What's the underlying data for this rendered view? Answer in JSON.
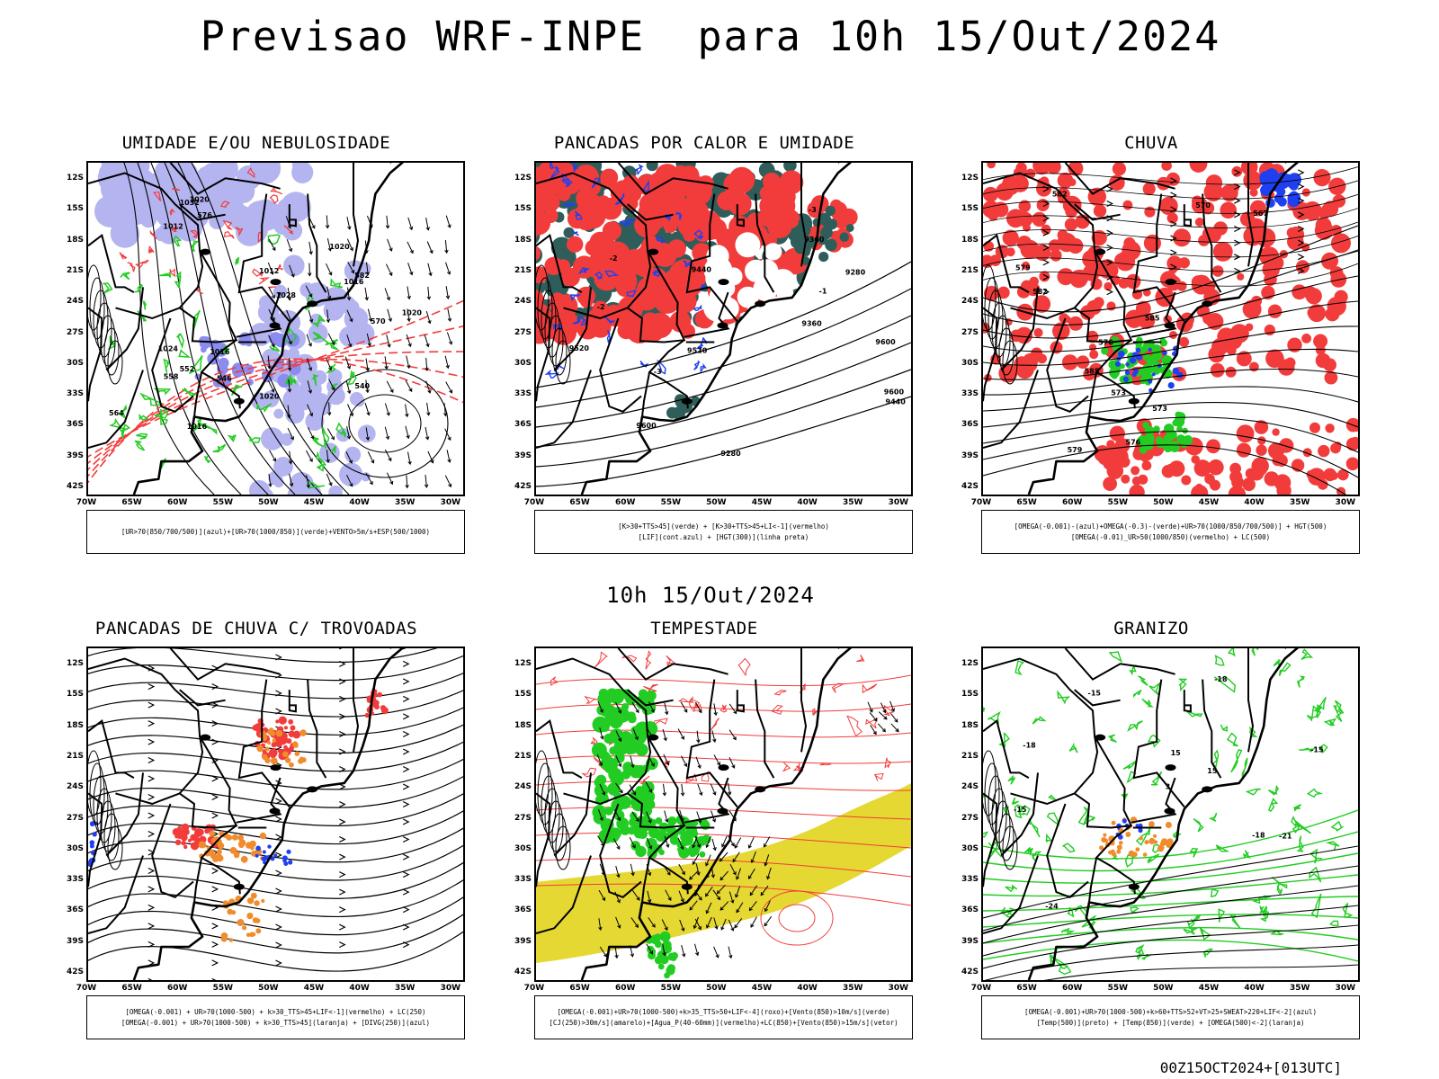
{
  "title": "Previsao WRF-INPE  para 10h 15/Out/2024",
  "mid_title": "10h 15/Out/2024",
  "footer": "00Z15OCT2024+[013UTC]",
  "lat_labels": [
    "12S",
    "15S",
    "18S",
    "21S",
    "24S",
    "27S",
    "30S",
    "33S",
    "36S",
    "39S",
    "42S"
  ],
  "lon_labels": [
    "70W",
    "65W",
    "60W",
    "55W",
    "50W",
    "45W",
    "40W",
    "35W",
    "30W"
  ],
  "colors": {
    "red": "#f23c3c",
    "green": "#22cc22",
    "blue": "#2040f0",
    "lavender": "#b4b4f0",
    "yellow": "#e6d832",
    "teal": "#2f5e5a",
    "orange": "#f08c2c",
    "black": "#000000"
  },
  "panels": [
    {
      "title": "UMIDADE E/OU NEBULOSIDADE",
      "legend": [
        "[UR>70(850/700/500)](azul)+[UR>70(1000/850)](verde)+VENTO>5m/s+ESP(500/1000)"
      ],
      "contour_labels": [
        "1016",
        "1012",
        "1016",
        "1020",
        "1024",
        "1028",
        "1032",
        "1020",
        "1016",
        "1020",
        "576",
        "570",
        "564",
        "558",
        "552",
        "546",
        "540",
        "582",
        "1012",
        "1020"
      ]
    },
    {
      "title": "PANCADAS POR CALOR E UMIDADE",
      "legend": [
        "[K>30+TTS>45](verde) + [K>30+TTS>45+LI<-1](vermelho)",
        "[LIF](cont.azul) + [HGT(300)](linha preta)"
      ],
      "contour_labels": [
        "9600",
        "9600",
        "9520",
        "9440",
        "9360",
        "9280",
        "9600",
        "9520",
        "9440",
        "9360",
        "9280",
        "-2",
        "-3",
        "-3",
        "-2",
        "-1"
      ]
    },
    {
      "title": "CHUVA",
      "legend": [
        "[OMEGA(-0.001)-(azul)+OMEGA(-0.3)-(verde)+UR>70(1000/850/700/500)] + HGT(500)",
        "[OMEGA(-0.01)_UR>50(1000/850)(vermelho) + LC(500)"
      ],
      "contour_labels": [
        "585",
        "582",
        "579",
        "576",
        "573",
        "570",
        "567",
        "573",
        "576",
        "585",
        "582",
        "579"
      ]
    },
    {
      "title": "PANCADAS DE CHUVA C/ TROVOADAS",
      "legend": [
        "[OMEGA(-0.001) + UR>70(1000-500) + k>30_TTS>45+LIF<-1](vermelho) + LC(250)",
        "[OMEGA(-0.001) + UR>70(1000-500) + k>30_TTS>45](laranja) + [DIVG(250)](azul)"
      ],
      "contour_labels": []
    },
    {
      "title": "TEMPESTADE",
      "legend": [
        "[OMEGA(-0.001)+UR>70(1000-500)+k>35_TTS>50+LIF<-4](roxo)+[Vento(850)>10m/s](verde)",
        "[CJ(250)>30m/s](amarelo)+[Agua_P(40-60mm)](vermelho)+LC(850)+[Vento(850)>15m/s](vetor)"
      ],
      "contour_labels": []
    },
    {
      "title": "GRANIZO",
      "legend": [
        "[OMEGA(-0.001)+UR>70(1000-500)+k>60+TTS>52+VT>25+SWEAT>220+LIF<-2](azul)",
        "[Temp(500)](preto) + [Temp(850)](verde) + [OMEGA(500)<-2](laranja)"
      ],
      "contour_labels": [
        "-15",
        "-18",
        "-15",
        "-15",
        "-18",
        "-21",
        "-24",
        "15",
        "15",
        "3",
        "-18"
      ]
    }
  ]
}
